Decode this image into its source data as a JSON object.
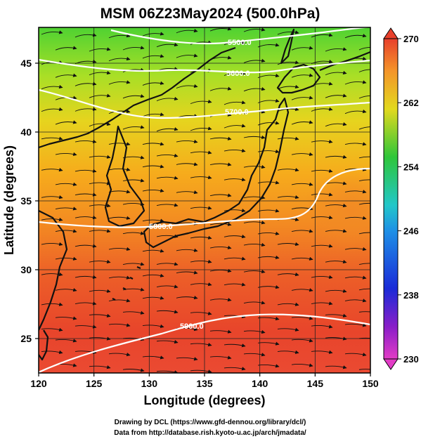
{
  "title": "MSM 06Z23May2024 (500.0hPa)",
  "x_axis": {
    "label": "Longitude (degrees)",
    "ticks": [
      "120",
      "125",
      "130",
      "135",
      "140",
      "145",
      "150"
    ],
    "range": [
      120,
      150
    ]
  },
  "y_axis": {
    "label": "Latitude  (degrees)",
    "ticks": [
      "25",
      "30",
      "35",
      "40",
      "45"
    ],
    "range": [
      22.5,
      47.6
    ]
  },
  "colorbar": {
    "ticks": [
      "270",
      "262",
      "254",
      "246",
      "238",
      "230"
    ],
    "range": [
      230,
      270
    ]
  },
  "contour_labels": [
    "5500.0",
    "5600.0",
    "5700.0",
    "5800.0",
    "5900.0"
  ],
  "credits": {
    "line1": "Drawing by DCL (https://www.gfd-dennou.org/library/dcl/)",
    "line2": "Data from http://database.rish.kyoto-u.ac.jp/arch/jmadata/"
  },
  "colors": {
    "warm": "#e83a2a",
    "mid": "#f7b21e",
    "cool": "#22c43a",
    "contour": "#ffffff",
    "coast": "#111111"
  }
}
